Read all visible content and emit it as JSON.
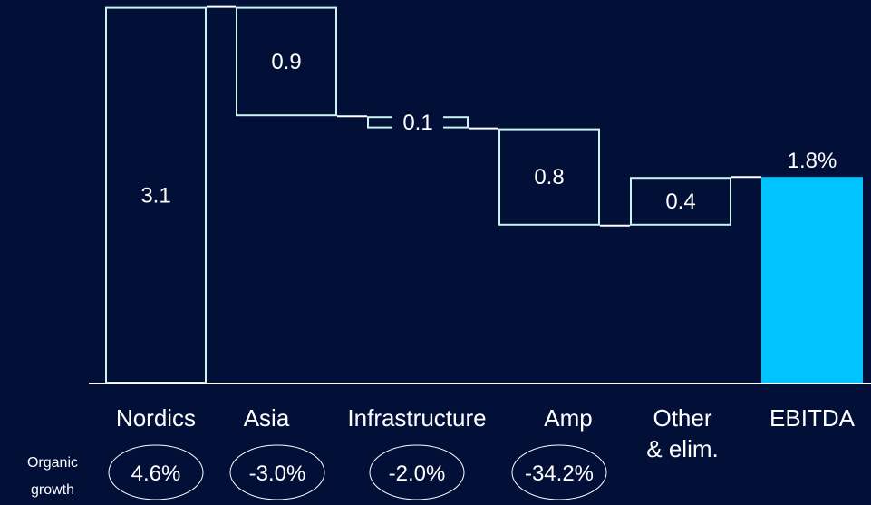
{
  "chart_data": {
    "type": "waterfall",
    "categories": [
      "Nordics",
      "Asia",
      "Infrastructure",
      "Amp",
      "Other",
      "EBITDA"
    ],
    "category_labels": [
      [
        "Nordics"
      ],
      [
        "Asia"
      ],
      [
        "Infrastructure"
      ],
      [
        "Amp"
      ],
      [
        "Other",
        "& elim."
      ],
      [
        "EBITDA"
      ]
    ],
    "steps": [
      {
        "label": "3.1",
        "start": 0,
        "end": 3.1,
        "kind": "increase"
      },
      {
        "label": "0.9",
        "start": 3.1,
        "end": 2.2,
        "kind": "decrease"
      },
      {
        "label": "0.1",
        "start": 2.2,
        "end": 2.1,
        "kind": "decrease"
      },
      {
        "label": "0.8",
        "start": 2.1,
        "end": 1.3,
        "kind": "decrease"
      },
      {
        "label": "0.4",
        "start": 1.3,
        "end": 1.7,
        "kind": "increase"
      },
      {
        "label": "1.8%",
        "start": 0,
        "end": 1.7,
        "kind": "total"
      }
    ],
    "organic_growth_label": [
      "Organic",
      "growth"
    ],
    "organic_growth": [
      "4.6%",
      "-3.0%",
      "-2.0%",
      "-34.2%"
    ],
    "colors": {
      "background": "#020f36",
      "outline": "#c8f4f2",
      "total_fill": "#00c3ff",
      "text": "#ffffff"
    }
  }
}
